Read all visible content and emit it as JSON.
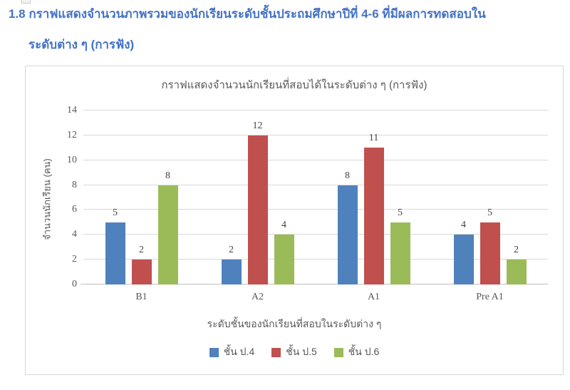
{
  "page": {
    "heading_line1": "1.8 กราฟแสดงจำนวนภาพรวมของนักเรียนระดับชั้นประถมศึกษาปีที่ 4-6 ที่มีผลการทดสอบใน",
    "heading_line2": "ระดับต่าง ๆ  (การฟัง)"
  },
  "colors": {
    "heading": "#4472C4",
    "axis_text": "#595959",
    "data_label_text": "#444444",
    "gridline": "#D9D9D9",
    "axis_line": "#BFBFBF",
    "chart_border": "#D6D6D6",
    "series_p4": "#4F81BD",
    "series_p5": "#C0504D",
    "series_p6": "#9BBB59"
  },
  "chart_data": {
    "type": "bar",
    "title": "กราฟแสดงจำนวนนักเรียนที่สอบได้ในระดับต่าง ๆ (การฟัง)",
    "categories": [
      "B1",
      "A2",
      "A1",
      "Pre A1"
    ],
    "series": [
      {
        "name": "ชั้น ป.4",
        "color": "#4F81BD",
        "values": [
          5,
          2,
          8,
          4
        ]
      },
      {
        "name": "ชั้น ป.5",
        "color": "#C0504D",
        "values": [
          2,
          12,
          11,
          5
        ]
      },
      {
        "name": "ชั้น ป.6",
        "color": "#9BBB59",
        "values": [
          8,
          4,
          5,
          2
        ]
      }
    ],
    "xlabel": "ระดับชั้นของนักเรียนที่สอบในระดับต่าง ๆ",
    "ylabel": "จำนวนนักเรียน (คน)",
    "ylim": [
      0,
      14
    ],
    "ytick_step": 2,
    "grid": true,
    "legend_position": "bottom",
    "data_labels": true
  }
}
